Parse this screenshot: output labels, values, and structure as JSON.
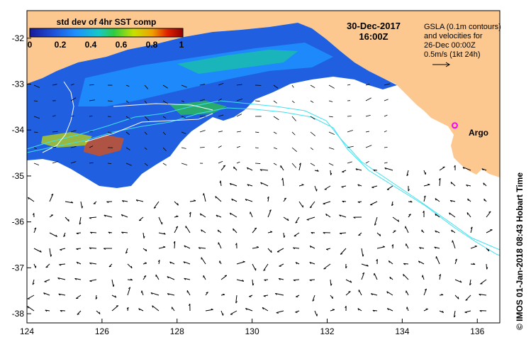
{
  "colorbar": {
    "title": "std dev of 4hr SST comp",
    "ticks": [
      "0",
      "0.2",
      "0.4",
      "0.6",
      "0.8",
      "1"
    ],
    "colors": [
      "#1a1a9a",
      "#1f4fd6",
      "#1e90ff",
      "#18c8c8",
      "#2ecc40",
      "#c8e000",
      "#f0a000",
      "#e02000",
      "#900000"
    ]
  },
  "datetime": {
    "date": "30-Dec-2017",
    "time": "16:00Z"
  },
  "legend": {
    "line1": "GSLA (0.1m contours)",
    "line2": "and velocities for",
    "line3": "26-Dec 00:00Z",
    "line4": "0.5m/s (1kt 24h)"
  },
  "marker": {
    "label": "Argo",
    "color": "#ff00ff",
    "lon": 135.4,
    "lat": -33.9
  },
  "axes": {
    "x_ticks": [
      "124",
      "126",
      "128",
      "130",
      "132",
      "134",
      "136"
    ],
    "y_ticks": [
      "-32",
      "-33",
      "-34",
      "-35",
      "-36",
      "-37",
      "-38"
    ],
    "lon_range": [
      124,
      136.6
    ],
    "lat_range": [
      -38.2,
      -31.4
    ]
  },
  "credit": "© IMOS 01-Jan-2018 08:43 Hobart Time",
  "colors": {
    "land": "#fcc890",
    "ocean": "#ffffff",
    "contour": "#40e0f0"
  }
}
